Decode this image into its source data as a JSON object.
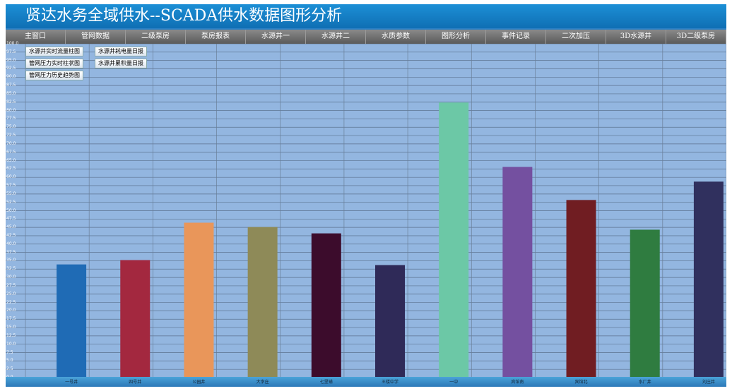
{
  "title": "贤达水务全域供水--SCADA供水数据图形分析",
  "nav": [
    "主窗口",
    "管网数据",
    "二级泵房",
    "泵房报表",
    "水源井一",
    "水源井二",
    "水质参数",
    "图形分析",
    "事件记录",
    "二次加压",
    "3D水源井",
    "3D二级泵房"
  ],
  "buttons": [
    "水源井实时流量柱图",
    "管网压力实时柱状图",
    "管网压力历史趋势图",
    "水源井耗电量日报",
    "水源井累积量日报"
  ],
  "chart_data": {
    "type": "bar",
    "categories": [
      "一号井",
      "四号井",
      "公园井",
      "大李庄",
      "七里铺",
      "王楼中学",
      "一中",
      "宾馆南",
      "宾馆北",
      "水厂井",
      "刘庄井"
    ],
    "values": [
      33.9,
      35.2,
      46.4,
      45.1,
      43.2,
      33.7,
      82.4,
      63.1,
      53.2,
      44.3,
      58.7
    ],
    "colors": [
      "#1f6bb5",
      "#a3283f",
      "#e9965a",
      "#8e8a58",
      "#3c0c2c",
      "#2f2a58",
      "#6cc8a6",
      "#7450a0",
      "#701d22",
      "#2f7c40",
      "#30305e"
    ],
    "ylim": [
      0,
      100
    ],
    "ytick_step": 2.5,
    "grid": true
  }
}
